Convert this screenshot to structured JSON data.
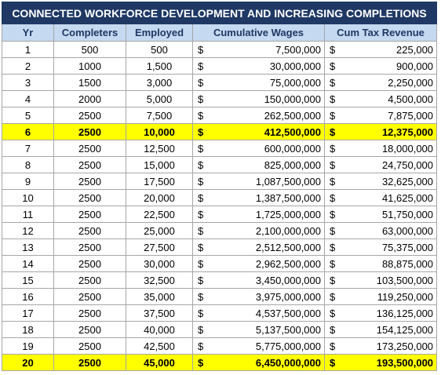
{
  "table": {
    "title": "CONNECTED WORKFORCE DEVELOPMENT AND INCREASING COMPLETIONS",
    "headers": [
      "Yr",
      "Completers",
      "Employed",
      "Cumulative Wages",
      "Cum Tax Revenue"
    ],
    "highlight_color": "#ffff00",
    "rows": [
      {
        "cells": [
          "1",
          "500",
          "500",
          "$",
          "7,500,000",
          "$",
          "225,000"
        ],
        "highlighted": false
      },
      {
        "cells": [
          "2",
          "1000",
          "1,500",
          "$",
          "30,000,000",
          "$",
          "900,000"
        ],
        "highlighted": false
      },
      {
        "cells": [
          "3",
          "1500",
          "3,000",
          "$",
          "75,000,000",
          "$",
          "2,250,000"
        ],
        "highlighted": false
      },
      {
        "cells": [
          "4",
          "2000",
          "5,000",
          "$",
          "150,000,000",
          "$",
          "4,500,000"
        ],
        "highlighted": false
      },
      {
        "cells": [
          "5",
          "2500",
          "7,500",
          "$",
          "262,500,000",
          "$",
          "7,875,000"
        ],
        "highlighted": false
      },
      {
        "cells": [
          "6",
          "2500",
          "10,000",
          "$",
          "412,500,000",
          "$",
          "12,375,000"
        ],
        "highlighted": true
      },
      {
        "cells": [
          "7",
          "2500",
          "12,500",
          "$",
          "600,000,000",
          "$",
          "18,000,000"
        ],
        "highlighted": false
      },
      {
        "cells": [
          "8",
          "2500",
          "15,000",
          "$",
          "825,000,000",
          "$",
          "24,750,000"
        ],
        "highlighted": false
      },
      {
        "cells": [
          "9",
          "2500",
          "17,500",
          "$",
          "1,087,500,000",
          "$",
          "32,625,000"
        ],
        "highlighted": false
      },
      {
        "cells": [
          "10",
          "2500",
          "20,000",
          "$",
          "1,387,500,000",
          "$",
          "41,625,000"
        ],
        "highlighted": false
      },
      {
        "cells": [
          "11",
          "2500",
          "22,500",
          "$",
          "1,725,000,000",
          "$",
          "51,750,000"
        ],
        "highlighted": false
      },
      {
        "cells": [
          "12",
          "2500",
          "25,000",
          "$",
          "2,100,000,000",
          "$",
          "63,000,000"
        ],
        "highlighted": false
      },
      {
        "cells": [
          "13",
          "2500",
          "27,500",
          "$",
          "2,512,500,000",
          "$",
          "75,375,000"
        ],
        "highlighted": false
      },
      {
        "cells": [
          "14",
          "2500",
          "30,000",
          "$",
          "2,962,500,000",
          "$",
          "88,875,000"
        ],
        "highlighted": false
      },
      {
        "cells": [
          "15",
          "2500",
          "32,500",
          "$",
          "3,450,000,000",
          "$",
          "103,500,000"
        ],
        "highlighted": false
      },
      {
        "cells": [
          "16",
          "2500",
          "35,000",
          "$",
          "3,975,000,000",
          "$",
          "119,250,000"
        ],
        "highlighted": false
      },
      {
        "cells": [
          "17",
          "2500",
          "37,500",
          "$",
          "4,537,500,000",
          "$",
          "136,125,000"
        ],
        "highlighted": false
      },
      {
        "cells": [
          "18",
          "2500",
          "40,000",
          "$",
          "5,137,500,000",
          "$",
          "154,125,000"
        ],
        "highlighted": false
      },
      {
        "cells": [
          "19",
          "2500",
          "42,500",
          "$",
          "5,775,000,000",
          "$",
          "173,250,000"
        ],
        "highlighted": false
      },
      {
        "cells": [
          "20",
          "2500",
          "45,000",
          "$",
          "6,450,000,000",
          "$",
          "193,500,000"
        ],
        "highlighted": true
      }
    ]
  }
}
